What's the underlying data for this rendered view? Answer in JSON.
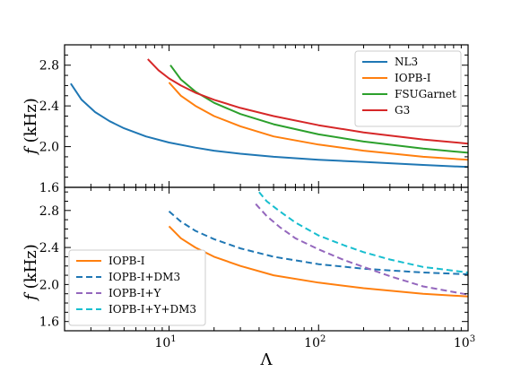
{
  "chart_data": [
    {
      "type": "line",
      "panel": "top",
      "xlabel": "Λ",
      "xscale": "log",
      "xlim": [
        2,
        1000
      ],
      "ylabel_main": "f",
      "ylabel_unit": "(kHz)",
      "ylim": [
        1.6,
        3.0
      ],
      "yticks": [
        "1.6",
        "2.0",
        "2.4",
        "2.8"
      ],
      "legend_placement": "top-right",
      "series": [
        {
          "name": "NL3",
          "color": "#1f77b4",
          "dash": "solid",
          "x": [
            2.2,
            2.6,
            3.2,
            4,
            5,
            7,
            10,
            15,
            20,
            30,
            50,
            100,
            200,
            500,
            1000
          ],
          "y": [
            2.62,
            2.46,
            2.34,
            2.25,
            2.18,
            2.1,
            2.04,
            1.99,
            1.96,
            1.93,
            1.9,
            1.87,
            1.85,
            1.82,
            1.8
          ]
        },
        {
          "name": "IOPB-I",
          "color": "#ff7f0e",
          "dash": "solid",
          "x": [
            10,
            12,
            15,
            20,
            30,
            50,
            100,
            200,
            500,
            1000
          ],
          "y": [
            2.63,
            2.5,
            2.4,
            2.3,
            2.2,
            2.1,
            2.02,
            1.96,
            1.9,
            1.87
          ]
        },
        {
          "name": "FSUGarnet",
          "color": "#2ca02c",
          "dash": "solid",
          "x": [
            10.2,
            12,
            15,
            20,
            30,
            50,
            100,
            200,
            500,
            1000
          ],
          "y": [
            2.8,
            2.66,
            2.54,
            2.43,
            2.32,
            2.22,
            2.12,
            2.05,
            1.98,
            1.94
          ]
        },
        {
          "name": "G3",
          "color": "#d62728",
          "dash": "solid",
          "x": [
            7.2,
            8.5,
            10,
            12,
            15,
            20,
            30,
            50,
            100,
            200,
            500,
            1000
          ],
          "y": [
            2.86,
            2.75,
            2.67,
            2.6,
            2.53,
            2.46,
            2.38,
            2.3,
            2.21,
            2.14,
            2.07,
            2.03
          ]
        }
      ]
    },
    {
      "type": "line",
      "panel": "bottom",
      "xlabel": "Λ",
      "xscale": "log",
      "xlim": [
        2,
        1000
      ],
      "xticks": [
        {
          "value": 10,
          "base": "10",
          "exp": "1"
        },
        {
          "value": 100,
          "base": "10",
          "exp": "2"
        },
        {
          "value": 1000,
          "base": "10",
          "exp": "3"
        }
      ],
      "ylabel_main": "f",
      "ylabel_unit": "(kHz)",
      "ylim": [
        1.5,
        3.05
      ],
      "yticks": [
        "1.6",
        "2.0",
        "2.4",
        "2.8"
      ],
      "legend_placement": "bottom-left",
      "series": [
        {
          "name": "IOPB-I",
          "color": "#ff7f0e",
          "dash": "solid",
          "x": [
            10,
            12,
            15,
            20,
            30,
            50,
            100,
            200,
            500,
            1000
          ],
          "y": [
            2.63,
            2.5,
            2.4,
            2.3,
            2.2,
            2.1,
            2.02,
            1.96,
            1.9,
            1.87
          ]
        },
        {
          "name": "IOPB-I+DM3",
          "color": "#1f77b4",
          "dash": "dashed",
          "x": [
            10,
            12,
            15,
            20,
            30,
            50,
            100,
            200,
            500,
            1000
          ],
          "y": [
            2.79,
            2.68,
            2.58,
            2.49,
            2.39,
            2.3,
            2.22,
            2.17,
            2.13,
            2.11
          ]
        },
        {
          "name": "IOPB-I+Y",
          "color": "#9467bd",
          "dash": "dashed",
          "x": [
            38,
            45,
            55,
            70,
            100,
            150,
            200,
            300,
            500,
            1000
          ],
          "y": [
            2.87,
            2.74,
            2.62,
            2.5,
            2.38,
            2.26,
            2.19,
            2.09,
            1.98,
            1.89
          ]
        },
        {
          "name": "IOPB-I+Y+DM3",
          "color": "#17becf",
          "dash": "dashed",
          "x": [
            40,
            45,
            55,
            70,
            100,
            150,
            200,
            300,
            500,
            1000
          ],
          "y": [
            3.0,
            2.9,
            2.79,
            2.67,
            2.53,
            2.42,
            2.35,
            2.27,
            2.19,
            2.13
          ]
        }
      ]
    }
  ]
}
